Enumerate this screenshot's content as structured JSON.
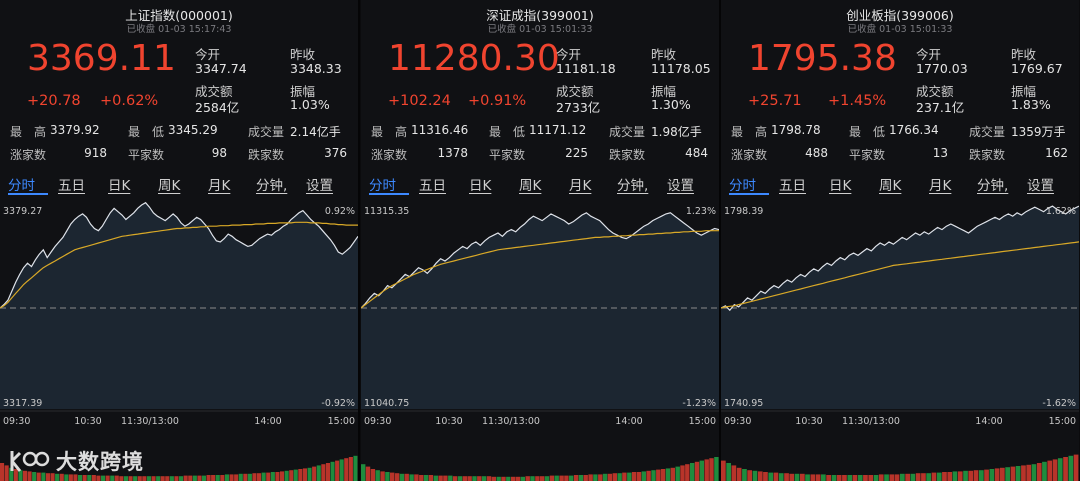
{
  "colors": {
    "up": "#f0442f",
    "down": "#19b04a",
    "accent": "#3d89ff",
    "line": "#dfe3ea",
    "avg": "#d9a927"
  },
  "panels": [
    {
      "title": "上证指数(000001)",
      "subtitle": "已收盘   01-03 15:17:43",
      "price": "3369.11",
      "change": "+20.78",
      "change_pct": "+0.62%",
      "stats": {
        "open_label": "今开",
        "open_value": "3347.74",
        "prev_label": "昨收",
        "prev_value": "3348.33",
        "turnover_label": "成交额",
        "turnover_value": "2584亿",
        "amp_label": "振幅",
        "amp_value": "1.03%"
      },
      "row1": {
        "high_label": "最　高",
        "high_value": "3379.92",
        "low_label": "最　低",
        "low_value": "3345.29",
        "vol_label": "成交量",
        "vol_value": "2.14亿手"
      },
      "row2": {
        "up_label": "涨家数",
        "up_value": "918",
        "flat_label": "平家数",
        "flat_value": "98",
        "down_label": "跌家数",
        "down_value": "376"
      },
      "axis": {
        "top": "3379.27",
        "bottom": "3317.39",
        "top_pct": "0.92%",
        "bottom_pct": "-0.92%"
      },
      "line": [
        0,
        6,
        14,
        30,
        46,
        60,
        72,
        80,
        74,
        86,
        96,
        104,
        90,
        100,
        110,
        118,
        126,
        138,
        150,
        158,
        164,
        168,
        162,
        150,
        142,
        138,
        146,
        158,
        170,
        178,
        172,
        166,
        158,
        164,
        170,
        178,
        184,
        188,
        180,
        170,
        164,
        160,
        156,
        162,
        168,
        162,
        152,
        146,
        150,
        156,
        162,
        158,
        150,
        142,
        130,
        120,
        118,
        124,
        132,
        128,
        122,
        118,
        114,
        110,
        112,
        118,
        124,
        128,
        132,
        130,
        136,
        140,
        146,
        150,
        158,
        164,
        170,
        174,
        166,
        158,
        152,
        146,
        138,
        130,
        122,
        112,
        100,
        96,
        102,
        108,
        118,
        128
      ],
      "avg": [
        0,
        4,
        10,
        18,
        26,
        34,
        42,
        48,
        54,
        60,
        66,
        72,
        76,
        80,
        84,
        88,
        92,
        96,
        100,
        104,
        106,
        108,
        110,
        112,
        114,
        116,
        118,
        120,
        122,
        124,
        126,
        128,
        129,
        130,
        131,
        132,
        133,
        134,
        135,
        136,
        137,
        138,
        139,
        140,
        141,
        142,
        142,
        143,
        143,
        144,
        144,
        145,
        145,
        146,
        146,
        146,
        147,
        147,
        147,
        148,
        148,
        148,
        149,
        149,
        149,
        150,
        150,
        150,
        151,
        151,
        151,
        152,
        152,
        152,
        152,
        153,
        153,
        153,
        153,
        152,
        152,
        152,
        151,
        151,
        150,
        150,
        149,
        149,
        148,
        148,
        148,
        148
      ],
      "volume": [
        30,
        26,
        22,
        20,
        18,
        17,
        16,
        15,
        14,
        14,
        13,
        13,
        12,
        12,
        11,
        11,
        11,
        10,
        10,
        10,
        10,
        9,
        9,
        9,
        9,
        9,
        8,
        8,
        8,
        8,
        8,
        8,
        8,
        8,
        8,
        8,
        8,
        8,
        8,
        8,
        9,
        9,
        9,
        9,
        9,
        10,
        10,
        10,
        10,
        11,
        11,
        11,
        12,
        12,
        12,
        13,
        13,
        14,
        14,
        15,
        15,
        16,
        17,
        18,
        19,
        20,
        21,
        22,
        24,
        26,
        28,
        30,
        32,
        34,
        36,
        38,
        40,
        42
      ]
    },
    {
      "title": "深证成指(399001)",
      "subtitle": "已收盘   01-03 15:01:33",
      "price": "11280.30",
      "change": "+102.24",
      "change_pct": "+0.91%",
      "stats": {
        "open_label": "今开",
        "open_value": "11181.18",
        "prev_label": "昨收",
        "prev_value": "11178.05",
        "turnover_label": "成交额",
        "turnover_value": "2733亿",
        "amp_label": "振幅",
        "amp_value": "1.30%"
      },
      "row1": {
        "high_label": "最　高",
        "high_value": "11316.46",
        "low_label": "最　低",
        "low_value": "11171.12",
        "vol_label": "成交量",
        "vol_value": "1.98亿手"
      },
      "row2": {
        "up_label": "涨家数",
        "up_value": "1378",
        "flat_label": "平家数",
        "flat_value": "225",
        "down_label": "跌家数",
        "down_value": "484"
      },
      "axis": {
        "top": "11315.35",
        "bottom": "11040.75",
        "top_pct": "1.23%",
        "bottom_pct": "-1.23%"
      },
      "line": [
        0,
        8,
        18,
        26,
        22,
        30,
        40,
        36,
        44,
        52,
        60,
        56,
        64,
        72,
        68,
        62,
        70,
        80,
        88,
        84,
        90,
        98,
        104,
        110,
        106,
        114,
        118,
        112,
        120,
        126,
        130,
        134,
        128,
        136,
        140,
        136,
        144,
        150,
        158,
        164,
        160,
        156,
        162,
        168,
        164,
        160,
        156,
        150,
        154,
        160,
        166,
        170,
        164,
        160,
        156,
        148,
        140,
        134,
        130,
        126,
        124,
        128,
        134,
        140,
        146,
        150,
        156,
        160,
        164,
        168,
        170,
        164,
        158,
        152,
        146,
        140,
        134,
        130,
        134,
        138,
        142,
        140
      ],
      "avg": [
        0,
        6,
        12,
        18,
        24,
        30,
        35,
        40,
        44,
        48,
        52,
        56,
        60,
        63,
        66,
        69,
        72,
        75,
        78,
        80,
        82,
        84,
        86,
        88,
        90,
        92,
        94,
        96,
        98,
        100,
        102,
        104,
        105,
        106,
        107,
        108,
        109,
        110,
        111,
        112,
        113,
        114,
        115,
        116,
        117,
        118,
        119,
        120,
        121,
        122,
        123,
        124,
        125,
        126,
        126,
        127,
        127,
        128,
        128,
        129,
        129,
        130,
        130,
        131,
        131,
        132,
        132,
        133,
        133,
        134,
        134,
        135,
        135,
        136,
        136,
        137,
        137,
        137,
        138,
        138,
        138,
        138
      ],
      "volume": [
        28,
        24,
        20,
        18,
        16,
        15,
        14,
        13,
        12,
        12,
        11,
        11,
        10,
        10,
        10,
        9,
        9,
        9,
        9,
        8,
        8,
        8,
        8,
        8,
        8,
        8,
        8,
        7,
        7,
        7,
        7,
        7,
        7,
        7,
        8,
        8,
        8,
        8,
        8,
        9,
        9,
        9,
        9,
        9,
        10,
        10,
        10,
        11,
        11,
        11,
        12,
        12,
        13,
        13,
        14,
        14,
        15,
        15,
        16,
        17,
        18,
        19,
        20,
        21,
        22,
        24,
        26,
        28,
        30,
        32,
        34,
        36,
        38,
        40
      ]
    },
    {
      "title": "创业板指(399006)",
      "subtitle": "已收盘   01-03 15:01:33",
      "price": "1795.38",
      "change": "+25.71",
      "change_pct": "+1.45%",
      "stats": {
        "open_label": "今开",
        "open_value": "1770.03",
        "prev_label": "昨收",
        "prev_value": "1769.67",
        "turnover_label": "成交额",
        "turnover_value": "237.1亿",
        "amp_label": "振幅",
        "amp_value": "1.83%"
      },
      "row1": {
        "high_label": "最　高",
        "high_value": "1798.78",
        "low_label": "最　低",
        "low_value": "1766.34",
        "vol_label": "成交量",
        "vol_value": "1359万手"
      },
      "row2": {
        "up_label": "涨家数",
        "up_value": "488",
        "flat_label": "平家数",
        "flat_value": "13",
        "down_label": "跌家数",
        "down_value": "162"
      },
      "axis": {
        "top": "1798.39",
        "bottom": "1740.95",
        "top_pct": "1.62%",
        "bottom_pct": "-1.62%"
      },
      "line": [
        0,
        4,
        -4,
        6,
        2,
        10,
        18,
        14,
        22,
        30,
        26,
        34,
        40,
        36,
        44,
        50,
        46,
        54,
        60,
        56,
        64,
        70,
        66,
        74,
        80,
        76,
        84,
        90,
        86,
        94,
        98,
        94,
        100,
        106,
        102,
        110,
        116,
        112,
        118,
        114,
        120,
        126,
        122,
        128,
        134,
        130,
        136,
        132,
        138,
        144,
        140,
        146,
        150,
        146,
        142,
        138,
        134,
        140,
        146,
        150,
        154,
        158,
        162,
        158,
        164,
        168,
        164,
        170,
        166,
        172,
        176,
        180,
        176,
        172,
        178,
        182,
        176,
        172,
        168,
        174,
        178,
        182
      ],
      "avg": [
        0,
        2,
        3,
        4,
        6,
        8,
        10,
        12,
        14,
        16,
        18,
        20,
        22,
        24,
        26,
        28,
        30,
        32,
        34,
        36,
        38,
        40,
        42,
        44,
        46,
        48,
        50,
        52,
        54,
        56,
        58,
        60,
        62,
        64,
        66,
        68,
        70,
        72,
        74,
        76,
        77,
        78,
        79,
        80,
        81,
        82,
        83,
        84,
        85,
        86,
        87,
        88,
        89,
        90,
        91,
        92,
        93,
        94,
        95,
        96,
        97,
        98,
        99,
        100,
        101,
        102,
        103,
        104,
        105,
        106,
        107,
        108,
        109,
        110,
        111,
        112,
        113,
        114,
        115,
        116,
        117,
        118
      ],
      "volume": [
        34,
        30,
        26,
        22,
        20,
        18,
        17,
        16,
        15,
        14,
        14,
        13,
        13,
        12,
        12,
        12,
        11,
        11,
        11,
        11,
        10,
        10,
        10,
        10,
        10,
        10,
        10,
        10,
        10,
        10,
        11,
        11,
        11,
        11,
        12,
        12,
        12,
        13,
        13,
        13,
        14,
        14,
        15,
        15,
        16,
        16,
        17,
        17,
        18,
        18,
        19,
        20,
        21,
        22,
        23,
        24,
        25,
        26,
        27,
        28,
        30,
        32,
        34,
        36,
        38,
        40,
        42,
        44
      ]
    }
  ],
  "tabs": [
    "分时",
    "五日",
    "日K",
    "周K",
    "月K",
    "分钟,",
    "设置"
  ],
  "time_axis": [
    "09:30",
    "10:30",
    "11:30/13:00",
    "14:00",
    "15:00"
  ],
  "watermark": "大数跨境"
}
